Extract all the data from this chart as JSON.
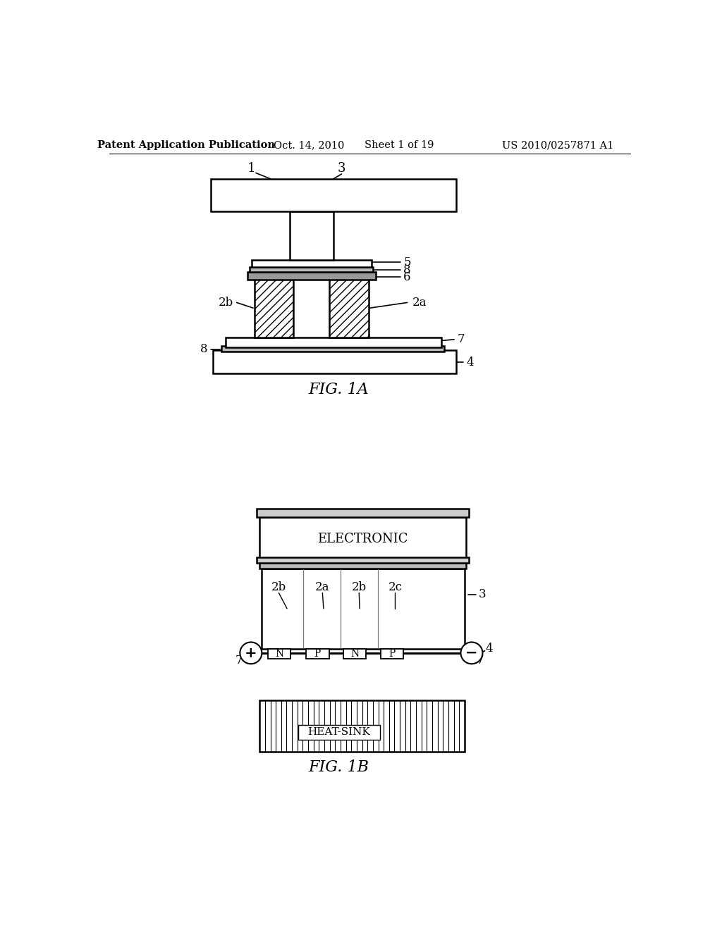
{
  "bg_color": "#ffffff",
  "header_text": "Patent Application Publication",
  "header_date": "Oct. 14, 2010",
  "header_sheet": "Sheet 1 of 19",
  "header_patent": "US 2010/0257871 A1",
  "fig1a_caption": "FIG. 1A",
  "fig1b_caption": "FIG. 1B",
  "line_color": "#000000",
  "fill_color": "#ffffff",
  "gray_color": "#cccccc"
}
